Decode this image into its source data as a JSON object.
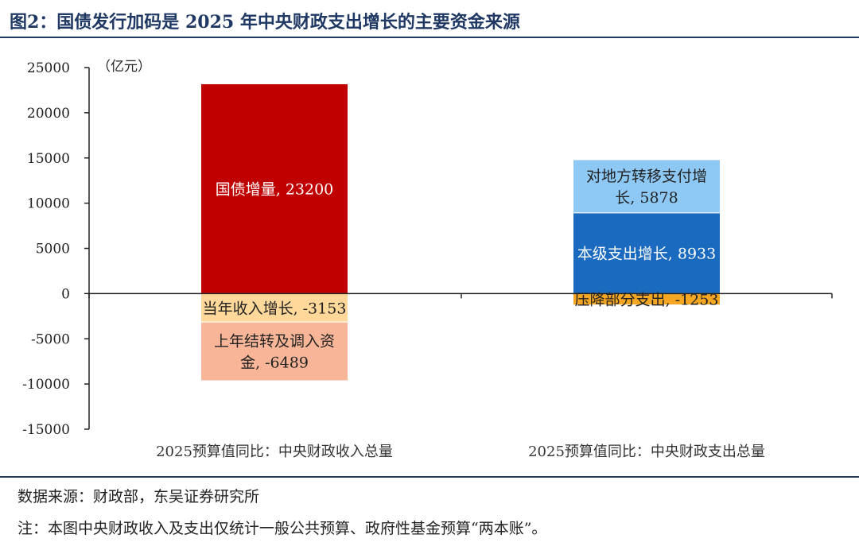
{
  "header": {
    "title": "图2：国债发行加码是 2025 年中央财政支出增长的主要资金来源"
  },
  "footer": {
    "source": "数据来源：财政部，东吴证券研究所",
    "note": "注：本图中央财政收入及支出仅统计一般公共预算、政府性基金预算“两本账”。"
  },
  "chart_data": {
    "type": "bar",
    "stacked": true,
    "unit_label": "（亿元）",
    "ylim": [
      -15000,
      25000
    ],
    "yticks": [
      25000,
      20000,
      15000,
      10000,
      5000,
      0,
      -5000,
      -10000,
      -15000
    ],
    "categories": [
      "2025预算值同比：中央财政收入总量",
      "2025预算值同比：中央财政支出总量"
    ],
    "series": [
      {
        "label": "国债增量, 23200",
        "category": 0,
        "value": 23200,
        "color": "#c00000",
        "text_color": "#ffffff"
      },
      {
        "label": "当年收入增长, -3153",
        "category": 0,
        "value": -3153,
        "color": "#ffd89a",
        "text_color": "#222222"
      },
      {
        "label": "上年结转及调入资金, -6489",
        "category": 0,
        "value": -6489,
        "color": "#f8b597",
        "text_color": "#222222"
      },
      {
        "label": "本级支出增长, 8933",
        "category": 1,
        "value": 8933,
        "color": "#1a6bbf",
        "text_color": "#ffffff"
      },
      {
        "label": "对地方转移支付增长, 5878",
        "category": 1,
        "value": 5878,
        "color": "#8ec9f5",
        "text_color": "#222222"
      },
      {
        "label": "压降部分支出, -1253",
        "category": 1,
        "value": -1253,
        "color": "#f5a623",
        "text_color": "#222222"
      }
    ]
  }
}
